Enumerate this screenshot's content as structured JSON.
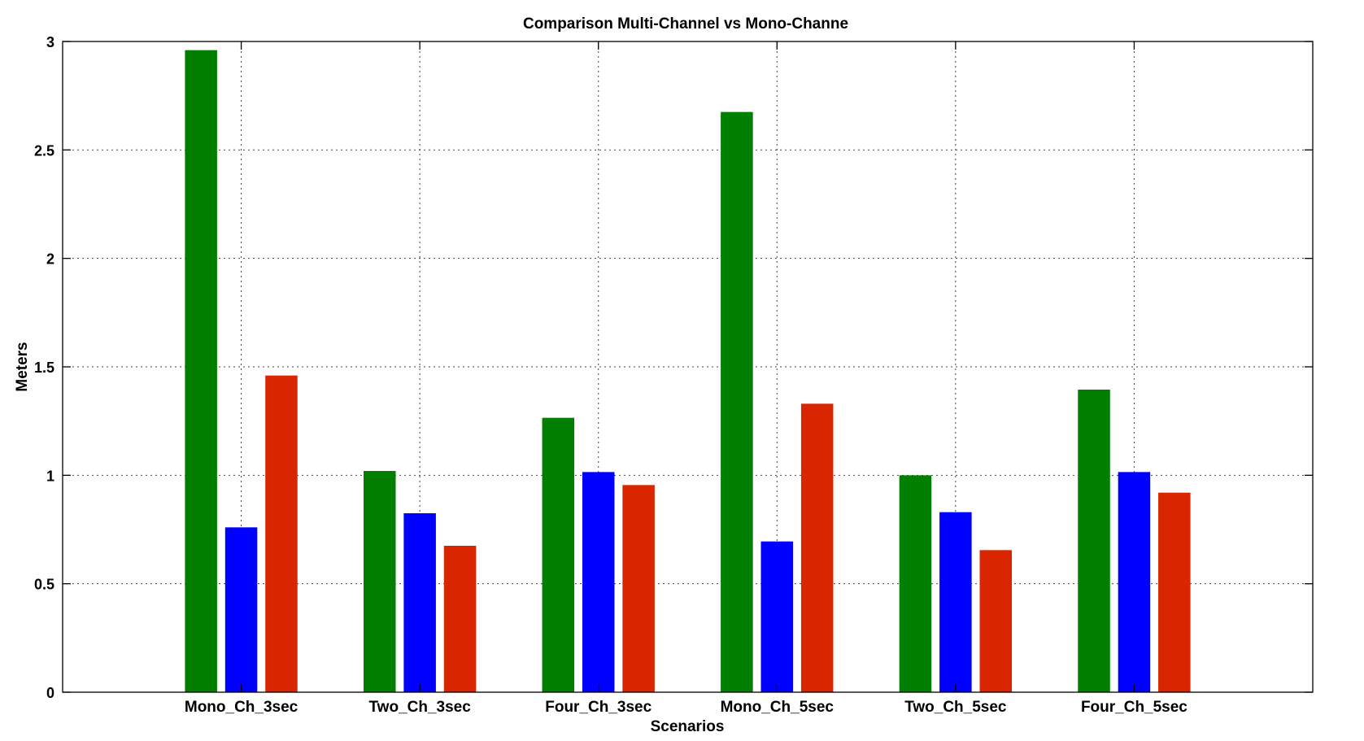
{
  "chart_data": {
    "type": "bar",
    "title": "Comparison Multi-Channel vs Mono-Channe",
    "xlabel": "Scenarios",
    "ylabel": "Meters",
    "ylim": [
      0,
      3
    ],
    "yticks": [
      0,
      0.5,
      1,
      1.5,
      2,
      2.5,
      3
    ],
    "ytick_labels": [
      "0",
      "0.5",
      "1",
      "1.5",
      "2",
      "2.5",
      "3"
    ],
    "categories": [
      "Mono_Ch_3sec",
      "Two_Ch_3sec",
      "Four_Ch_3sec",
      "Mono_Ch_5sec",
      "Two_Ch_5sec",
      "Four_Ch_5sec"
    ],
    "category_labels_shown": [
      "Mono_Ch_3sec",
      "Two_Ch_3sec",
      "Four_Ch_3sec",
      "Mono_Ch_5sec",
      "Two_Ch_5sec",
      "Four_Ch_5sec"
    ],
    "grid": true,
    "legend": "none",
    "series": [
      {
        "color": "#007f00",
        "values": [
          2.96,
          1.02,
          1.265,
          2.675,
          1.0,
          1.395
        ]
      },
      {
        "color": "#0000ff",
        "values": [
          0.76,
          0.825,
          1.015,
          0.695,
          0.83,
          1.015
        ]
      },
      {
        "color": "#d92600",
        "values": [
          1.46,
          0.675,
          0.955,
          1.33,
          0.655,
          0.92
        ]
      }
    ]
  }
}
